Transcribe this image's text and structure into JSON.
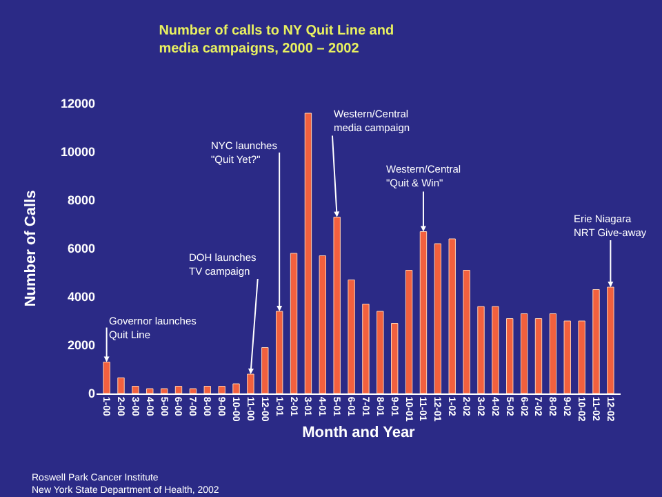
{
  "chart_data": {
    "type": "bar",
    "title": "Number of calls to NY Quit Line and\nmedia campaigns, 2000 – 2002",
    "xlabel": "Month and Year",
    "ylabel": "Number of Calls",
    "categories": [
      "1-00",
      "2-00",
      "3-00",
      "4-00",
      "5-00",
      "6-00",
      "7-00",
      "8-00",
      "9-00",
      "10-00",
      "11-00",
      "12-00",
      "1-01",
      "2-01",
      "3-01",
      "4-01",
      "5-01",
      "6-01",
      "7-01",
      "8-01",
      "9-01",
      "10-01",
      "11-01",
      "12-01",
      "1-02",
      "2-02",
      "3-02",
      "4-02",
      "5-02",
      "6-02",
      "7-02",
      "8-02",
      "9-02",
      "10-02",
      "11-02",
      "12-02"
    ],
    "values": [
      1300,
      650,
      300,
      200,
      200,
      300,
      200,
      300,
      300,
      400,
      800,
      1900,
      3400,
      5800,
      11600,
      5700,
      7300,
      4700,
      3700,
      3400,
      2900,
      5100,
      6700,
      6200,
      6400,
      5100,
      3600,
      3600,
      3100,
      3300,
      3100,
      3300,
      3000,
      3000,
      4300,
      4400
    ],
    "color": "#f2603e",
    "ylim": [
      0,
      12000
    ],
    "yticks": [
      0,
      2000,
      4000,
      6000,
      8000,
      10000,
      12000
    ],
    "grid": false,
    "annotations": [
      {
        "text": "Governor launches\nQuit Line",
        "x": "1-00",
        "y": 1300
      },
      {
        "text": "DOH launches\nTV campaign",
        "x": "11-00",
        "y": 800
      },
      {
        "text": "NYC launches\n\"Quit Yet?\"",
        "x": "1-01",
        "y": 3400
      },
      {
        "text": "Western/Central\nmedia campaign",
        "x": "5-01",
        "y": 7300
      },
      {
        "text": "Western/Central\n\"Quit & Win\"",
        "x": "11-01",
        "y": 6700
      },
      {
        "text": "Erie Niagara\nNRT Give-away",
        "x": "12-02",
        "y": 4400
      },
      "Roswell Park Cancer Institute\nNew York State Department of Health, 2002"
    ]
  }
}
